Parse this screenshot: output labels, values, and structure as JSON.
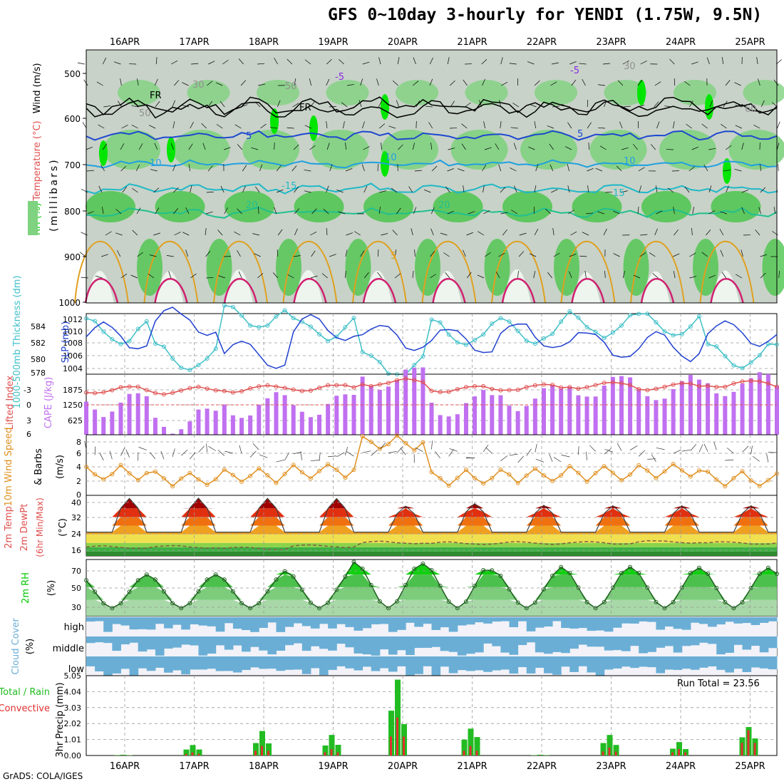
{
  "title": "GFS 0~10day 3-hourly for YENDI (1.75W, 9.5N)",
  "credit": "GrADS: COLA/IGES",
  "dates": [
    "16APR",
    "17APR",
    "18APR",
    "19APR",
    "20APR",
    "21APR",
    "22APR",
    "23APR",
    "24APR",
    "25APR"
  ],
  "colors": {
    "rh_dark": "#c8d2c8",
    "rh_mid": "#7fd27f",
    "rh_green": "#4cc64c",
    "rh_bright": "#00e600",
    "wind_label": "#000000",
    "temp_label": "#e05050",
    "rh_label": "#00c800",
    "thick": "#40c0c8",
    "slp": "#2040d0",
    "li": "#e05050",
    "cape": "#c070f0",
    "wind10": "#e09020",
    "dew": "#806040",
    "cloud": "#6aaed6",
    "precip_total": "#22bb22",
    "precip_conv": "#e03030"
  },
  "panels": {
    "cross_section": {
      "ylabel_parts": [
        "RH (%)",
        "Temperature (°C)",
        "Wind (m/s)"
      ],
      "ylabel_unit": "(millibars)",
      "ticks": [
        "500",
        "600",
        "700",
        "800",
        "900",
        "1000"
      ],
      "contour_labels": [
        "-5",
        "-5",
        "FR",
        "FR",
        "5",
        "5",
        "10",
        "10",
        "10",
        "-15",
        "15",
        "20",
        "20",
        "5",
        "30",
        "50",
        "50",
        "60",
        "30"
      ]
    },
    "thickness_slp": {
      "left_label": "1000-500mb Thickness (dm)",
      "right_label": "SLP (mb)",
      "left_ticks": [
        "584",
        "582",
        "580",
        "578"
      ],
      "right_ticks": [
        "1012",
        "1010",
        "1008",
        "1006",
        "1004"
      ]
    },
    "li_cape": {
      "left_label": "Lifted Index",
      "right_label": "CAPE (J/kg)",
      "left_ticks": [
        "-3",
        "0",
        "3",
        "6"
      ],
      "right_ticks": [
        "1875",
        "1250",
        "625"
      ]
    },
    "wind10": {
      "label_lines": [
        "10m Wind Speed",
        "& Barbs"
      ],
      "unit": "(m/s)",
      "ticks": [
        "8",
        "6",
        "4",
        "2",
        "0"
      ]
    },
    "temp": {
      "label_lines": [
        "2m Temp",
        "2m DewPt",
        "(6hr Min/Max)"
      ],
      "unit": "(°C)",
      "ticks": [
        "40",
        "32",
        "24",
        "16"
      ]
    },
    "rh2m": {
      "label": "2m RH",
      "unit": "(%)",
      "ticks": [
        "70",
        "50",
        "30"
      ]
    },
    "cloud": {
      "label": "Cloud Cover",
      "unit": "(%)",
      "levels": [
        "high",
        "middle",
        "low"
      ]
    },
    "precip": {
      "label_lines": [
        "Total / Rain",
        "Convective"
      ],
      "unit": "3hr Precip (mm)",
      "ticks": [
        "5.05",
        "4.04",
        "3.03",
        "2.02",
        "1.01",
        "0.00"
      ],
      "run_total": "Run Total = 23.56"
    }
  },
  "chart_data": [
    {
      "type": "line",
      "title": "1000-500mb Thickness (dm) / SLP (mb)",
      "x": [
        "16APR",
        "17APR",
        "18APR",
        "19APR",
        "20APR",
        "21APR",
        "22APR",
        "23APR",
        "24APR",
        "25APR"
      ],
      "series": [
        {
          "name": "1000-500mb Thickness (dm)",
          "values": [
            582.8,
            579.2,
            584.6,
            583.1,
            578.3,
            582.4,
            582.6,
            583.5,
            583.6,
            579.6
          ]
        },
        {
          "name": "SLP (mb)",
          "values": [
            1009.0,
            1011.6,
            1006.0,
            1010.4,
            1009.2,
            1008.6,
            1009.4,
            1007.9,
            1007.6,
            1009.6
          ]
        }
      ],
      "ylim_left": [
        577,
        585
      ],
      "ylim_right": [
        1003,
        1013
      ]
    },
    {
      "type": "bar",
      "title": "Lifted Index / CAPE (J/kg)",
      "categories": [
        "16APR",
        "17APR",
        "18APR",
        "19APR",
        "20APR",
        "21APR",
        "22APR",
        "23APR",
        "24APR",
        "25APR"
      ],
      "series": [
        {
          "name": "CAPE (J/kg)",
          "values": [
            1300,
            620,
            1200,
            1250,
            2350,
            1250,
            1550,
            2000,
            1900,
            2050
          ]
        },
        {
          "name": "Lifted Index",
          "values": [
            -2.2,
            -2.0,
            -2.4,
            -2.5,
            -3.5,
            -2.3,
            -2.6,
            -3.0,
            -2.8,
            -3.2
          ]
        }
      ],
      "ylim": [
        0,
        2500
      ]
    },
    {
      "type": "line",
      "title": "10m Wind Speed (m/s)",
      "x": [
        "16APR",
        "17APR",
        "18APR",
        "19APR",
        "20APR",
        "21APR",
        "22APR",
        "23APR",
        "24APR",
        "25APR"
      ],
      "series": [
        {
          "name": "10m Wind Speed",
          "values": [
            3.3,
            2.5,
            3.0,
            3.6,
            7.8,
            2.6,
            3.0,
            3.2,
            3.6,
            2.4
          ]
        }
      ],
      "ylim": [
        0,
        9
      ]
    },
    {
      "type": "area",
      "title": "2m Temp (°C)",
      "x": [
        "16APR",
        "17APR",
        "18APR",
        "19APR",
        "20APR",
        "21APR",
        "22APR",
        "23APR",
        "24APR",
        "25APR"
      ],
      "series": [
        {
          "name": "2m Temp max",
          "values": [
            39.5,
            39.6,
            39.7,
            39.6,
            39.5,
            36.0,
            37.2,
            36.4,
            36.2,
            36.2
          ]
        },
        {
          "name": "2m DewPt",
          "values": [
            18.0,
            18.2,
            17.5,
            18.5,
            20.2,
            19.8,
            20.0,
            20.0,
            20.5,
            20.0
          ]
        }
      ],
      "ylim": [
        14,
        42
      ]
    },
    {
      "type": "area",
      "title": "2m RH (%)",
      "x": [
        "16APR",
        "17APR",
        "18APR",
        "19APR",
        "20APR",
        "21APR",
        "22APR",
        "23APR",
        "24APR",
        "25APR"
      ],
      "series": [
        {
          "name": "2m RH max",
          "values": [
            69,
            70,
            70,
            74,
            85,
            83,
            75,
            79,
            79,
            78
          ]
        }
      ],
      "ylim": [
        20,
        88
      ]
    },
    {
      "type": "bar",
      "title": "3hr Precip (mm)",
      "categories": [
        "16APR",
        "17APR",
        "18APR",
        "19APR",
        "20APR",
        "21APR",
        "22APR",
        "23APR",
        "24APR",
        "25APR"
      ],
      "series": [
        {
          "name": "Total",
          "values": [
            0.05,
            0.66,
            1.55,
            1.3,
            4.8,
            1.7,
            0.05,
            1.3,
            0.85,
            1.8
          ]
        },
        {
          "name": "Convective",
          "values": [
            0.02,
            0.2,
            0.6,
            0.4,
            2.4,
            0.6,
            0.02,
            0.5,
            0.4,
            1.6
          ]
        }
      ],
      "ylim": [
        0,
        5.05
      ],
      "annotations": [
        "Run Total = 23.56"
      ]
    }
  ]
}
